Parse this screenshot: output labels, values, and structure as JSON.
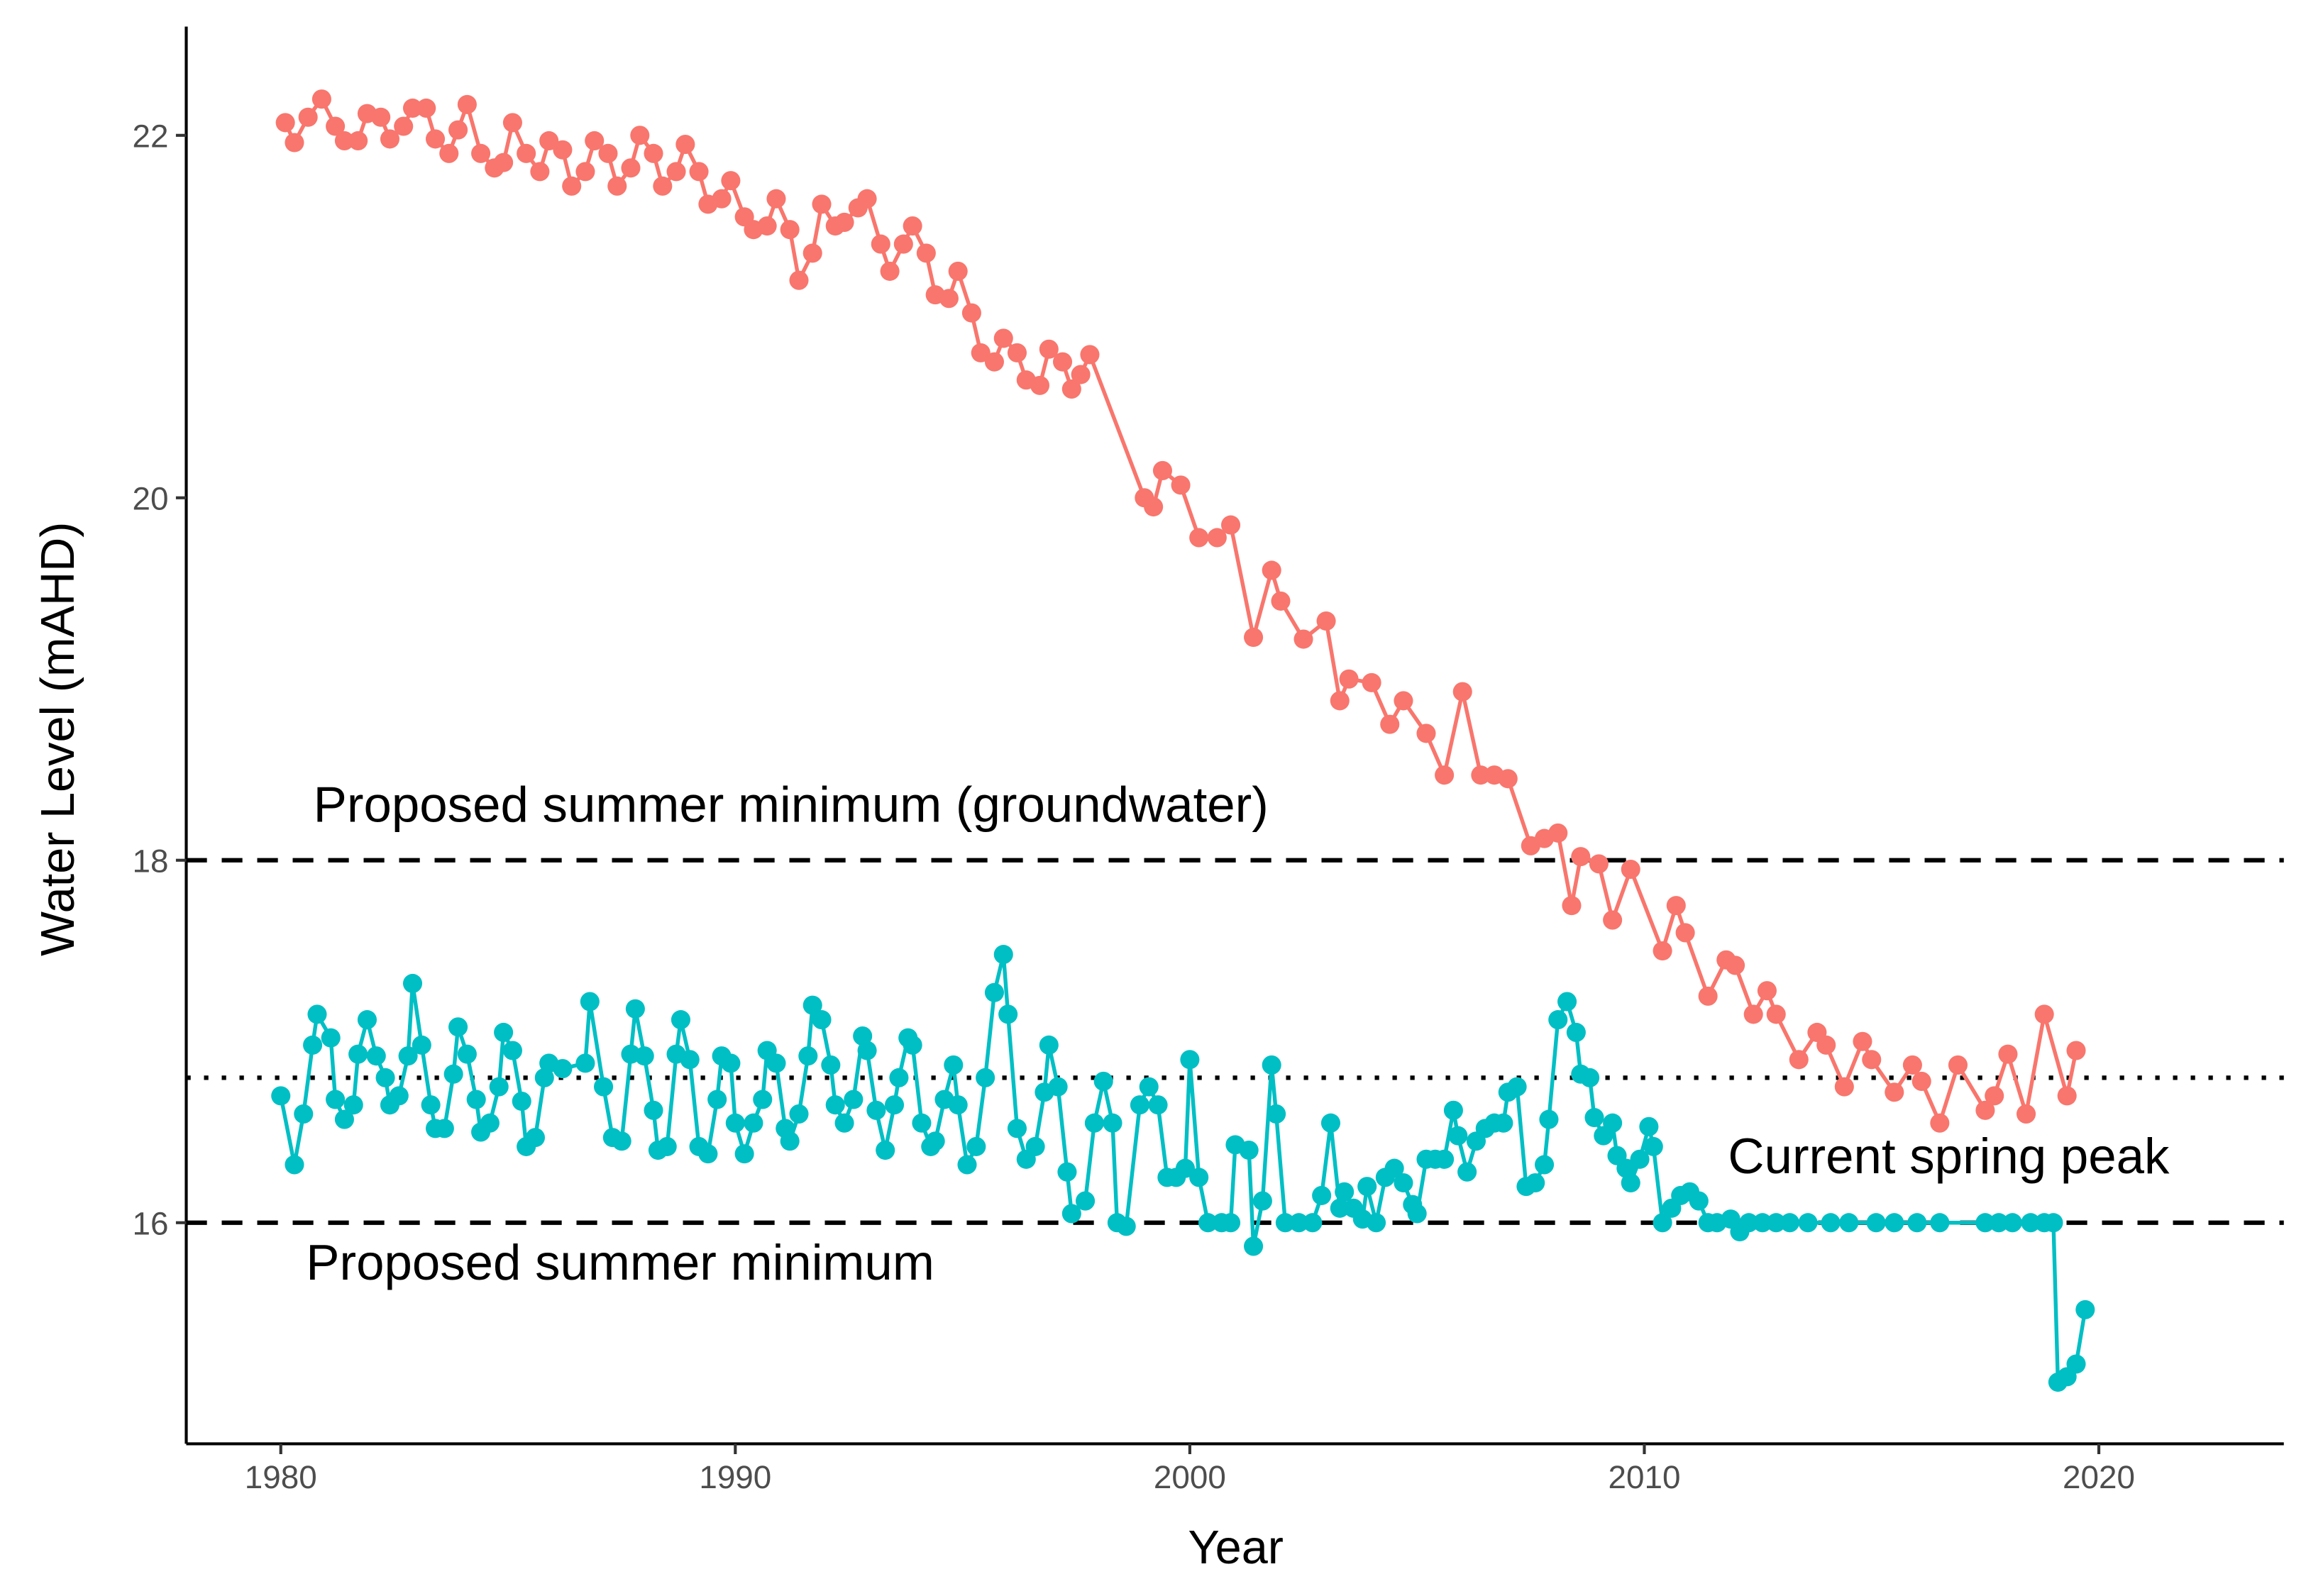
{
  "chart_data": {
    "type": "line",
    "x_label": "Year",
    "y_label": "Water Level (mAHD)",
    "xlim": [
      1977.92,
      2024.07
    ],
    "ylim": [
      14.78,
      22.6
    ],
    "xticks": [
      1980,
      1990,
      2000,
      2010,
      2020
    ],
    "yticks": [
      16,
      18,
      20,
      22
    ],
    "grid": false,
    "reference_lines": [
      {
        "value": 18,
        "style": "dashed"
      },
      {
        "value": 16,
        "style": "dashed"
      },
      {
        "value": 16.8,
        "style": "dotted"
      }
    ],
    "annotations": [
      "Proposed summer minimum (groundwater)",
      "Proposed summer minimum",
      "Current spring peak"
    ],
    "series": [
      {
        "color": "#F8766D",
        "x": [
          1980.1,
          1980.3,
          1980.6,
          1980.9,
          1981.2,
          1981.4,
          1981.7,
          1981.9,
          1982.2,
          1982.4,
          1982.7,
          1982.9,
          1983.2,
          1983.4,
          1983.7,
          1983.9,
          1984.1,
          1984.4,
          1984.7,
          1984.9,
          1985.1,
          1985.4,
          1985.7,
          1985.9,
          1986.2,
          1986.4,
          1986.7,
          1986.9,
          1987.2,
          1987.4,
          1987.7,
          1987.9,
          1988.2,
          1988.4,
          1988.7,
          1988.9,
          1989.2,
          1989.4,
          1989.7,
          1989.9,
          1990.2,
          1990.4,
          1990.7,
          1990.9,
          1991.2,
          1991.4,
          1991.7,
          1991.9,
          1992.2,
          1992.4,
          1992.7,
          1992.9,
          1993.2,
          1993.4,
          1993.7,
          1993.9,
          1994.2,
          1994.4,
          1994.7,
          1994.9,
          1995.2,
          1995.4,
          1995.7,
          1995.9,
          1996.2,
          1996.4,
          1996.7,
          1996.9,
          1997.2,
          1997.4,
          1997.6,
          1997.8,
          1999.0,
          1999.2,
          1999.4,
          1999.8,
          2000.2,
          2000.6,
          2000.9,
          2001.4,
          2001.8,
          2002.0,
          2002.5,
          2003.0,
          2003.3,
          2003.5,
          2004.0,
          2004.4,
          2004.7,
          2005.2,
          2005.6,
          2006.0,
          2006.4,
          2006.7,
          2007.0,
          2007.5,
          2007.8,
          2008.1,
          2008.4,
          2008.6,
          2009.0,
          2009.3,
          2009.7,
          2010.4,
          2010.7,
          2010.9,
          2011.4,
          2011.8,
          2012.0,
          2012.4,
          2012.7,
          2012.9,
          2013.4,
          2013.8,
          2014.0,
          2014.4,
          2014.8,
          2015.0,
          2015.5,
          2015.9,
          2016.1,
          2016.5,
          2016.9,
          2017.5,
          2017.7,
          2018.0,
          2018.4,
          2018.8,
          2019.3,
          2019.5
        ],
        "values": [
          22.07,
          21.96,
          22.1,
          22.2,
          22.05,
          21.97,
          21.97,
          22.12,
          22.1,
          21.98,
          22.05,
          22.15,
          22.15,
          21.98,
          21.9,
          22.03,
          22.17,
          21.9,
          21.82,
          21.85,
          22.07,
          21.9,
          21.8,
          21.97,
          21.92,
          21.72,
          21.8,
          21.97,
          21.9,
          21.72,
          21.82,
          22.0,
          21.9,
          21.72,
          21.8,
          21.95,
          21.8,
          21.62,
          21.65,
          21.75,
          21.55,
          21.48,
          21.5,
          21.65,
          21.48,
          21.2,
          21.35,
          21.62,
          21.5,
          21.52,
          21.6,
          21.65,
          21.4,
          21.25,
          21.4,
          21.5,
          21.35,
          21.12,
          21.1,
          21.25,
          21.02,
          20.8,
          20.75,
          20.88,
          20.8,
          20.65,
          20.62,
          20.82,
          20.75,
          20.6,
          20.68,
          20.79,
          20.0,
          19.95,
          20.15,
          20.07,
          19.78,
          19.78,
          19.85,
          19.23,
          19.6,
          19.43,
          19.22,
          19.32,
          18.88,
          19.0,
          18.98,
          18.75,
          18.88,
          18.7,
          18.47,
          18.93,
          18.47,
          18.47,
          18.45,
          18.08,
          18.12,
          18.15,
          17.75,
          18.02,
          17.98,
          17.67,
          17.95,
          17.5,
          17.75,
          17.6,
          17.25,
          17.45,
          17.42,
          17.15,
          17.28,
          17.15,
          16.9,
          17.05,
          16.98,
          16.75,
          17.0,
          16.9,
          16.72,
          16.87,
          16.78,
          16.55,
          16.87,
          16.62,
          16.7,
          16.93,
          16.6,
          17.15,
          16.7,
          16.95
        ]
      },
      {
        "color": "#00BFC4",
        "x": [
          1980.0,
          1980.3,
          1980.5,
          1980.7,
          1980.8,
          1981.1,
          1981.2,
          1981.4,
          1981.6,
          1981.7,
          1981.9,
          1982.1,
          1982.3,
          1982.4,
          1982.6,
          1982.8,
          1982.9,
          1983.1,
          1983.3,
          1983.4,
          1983.6,
          1983.8,
          1983.9,
          1984.1,
          1984.3,
          1984.4,
          1984.6,
          1984.8,
          1984.9,
          1985.1,
          1985.3,
          1985.4,
          1985.6,
          1985.8,
          1985.9,
          1986.2,
          1986.7,
          1986.8,
          1987.1,
          1987.3,
          1987.5,
          1987.7,
          1987.8,
          1988.0,
          1988.2,
          1988.3,
          1988.5,
          1988.7,
          1988.8,
          1989.0,
          1989.2,
          1989.4,
          1989.6,
          1989.7,
          1989.9,
          1990.0,
          1990.2,
          1990.4,
          1990.6,
          1990.7,
          1990.9,
          1991.1,
          1991.2,
          1991.4,
          1991.6,
          1991.7,
          1991.9,
          1992.1,
          1992.2,
          1992.4,
          1992.6,
          1992.8,
          1992.9,
          1993.1,
          1993.3,
          1993.5,
          1993.6,
          1993.8,
          1993.9,
          1994.1,
          1994.3,
          1994.4,
          1994.6,
          1994.8,
          1994.9,
          1995.1,
          1995.3,
          1995.5,
          1995.7,
          1995.9,
          1996.0,
          1996.2,
          1996.4,
          1996.6,
          1996.8,
          1996.9,
          1997.1,
          1997.3,
          1997.4,
          1997.7,
          1997.9,
          1998.1,
          1998.3,
          1998.4,
          1998.6,
          1998.9,
          1999.1,
          1999.3,
          1999.5,
          1999.7,
          1999.9,
          2000.0,
          2000.2,
          2000.4,
          2000.7,
          2000.9,
          2001.0,
          2001.3,
          2001.4,
          2001.6,
          2001.8,
          2001.9,
          2002.1,
          2002.4,
          2002.7,
          2002.9,
          2003.1,
          2003.3,
          2003.4,
          2003.6,
          2003.8,
          2003.9,
          2004.1,
          2004.3,
          2004.5,
          2004.7,
          2004.9,
          2005.0,
          2005.2,
          2005.4,
          2005.6,
          2005.8,
          2005.9,
          2006.1,
          2006.3,
          2006.5,
          2006.7,
          2006.9,
          2007.0,
          2007.2,
          2007.4,
          2007.6,
          2007.8,
          2007.9,
          2008.1,
          2008.3,
          2008.5,
          2008.6,
          2008.8,
          2008.9,
          2009.1,
          2009.3,
          2009.4,
          2009.6,
          2009.7,
          2009.9,
          2010.1,
          2010.2,
          2010.4,
          2010.6,
          2010.8,
          2011.0,
          2011.2,
          2011.4,
          2011.6,
          2011.9,
          2012.1,
          2012.3,
          2012.6,
          2012.9,
          2013.2,
          2013.6,
          2014.1,
          2014.5,
          2015.1,
          2015.5,
          2016.0,
          2016.5,
          2017.5,
          2017.8,
          2018.1,
          2018.5,
          2018.8,
          2019.0,
          2019.1,
          2019.3,
          2019.5,
          2019.7
        ],
        "values": [
          16.7,
          16.32,
          16.6,
          16.98,
          17.15,
          17.02,
          16.68,
          16.57,
          16.65,
          16.93,
          17.12,
          16.92,
          16.8,
          16.65,
          16.7,
          16.92,
          17.32,
          16.98,
          16.65,
          16.52,
          16.52,
          16.82,
          17.08,
          16.93,
          16.68,
          16.5,
          16.55,
          16.75,
          17.05,
          16.95,
          16.67,
          16.42,
          16.47,
          16.8,
          16.88,
          16.85,
          16.88,
          17.22,
          16.75,
          16.47,
          16.45,
          16.93,
          17.18,
          16.92,
          16.62,
          16.4,
          16.42,
          16.93,
          17.12,
          16.9,
          16.42,
          16.38,
          16.68,
          16.92,
          16.88,
          16.55,
          16.38,
          16.55,
          16.68,
          16.95,
          16.88,
          16.52,
          16.45,
          16.6,
          16.92,
          17.2,
          17.12,
          16.87,
          16.65,
          16.55,
          16.68,
          17.03,
          16.95,
          16.62,
          16.4,
          16.65,
          16.8,
          17.02,
          16.98,
          16.55,
          16.42,
          16.45,
          16.68,
          16.87,
          16.65,
          16.32,
          16.42,
          16.8,
          17.27,
          17.48,
          17.15,
          16.52,
          16.35,
          16.42,
          16.72,
          16.98,
          16.75,
          16.28,
          16.05,
          16.12,
          16.55,
          16.78,
          16.55,
          16.0,
          15.98,
          16.65,
          16.75,
          16.65,
          16.25,
          16.25,
          16.3,
          16.9,
          16.25,
          16.0,
          16.0,
          16.0,
          16.43,
          16.4,
          15.87,
          16.12,
          16.87,
          16.6,
          16.0,
          16.0,
          16.0,
          16.15,
          16.55,
          16.08,
          16.17,
          16.08,
          16.02,
          16.2,
          16.0,
          16.25,
          16.3,
          16.22,
          16.1,
          16.05,
          16.35,
          16.35,
          16.35,
          16.62,
          16.48,
          16.28,
          16.45,
          16.52,
          16.55,
          16.55,
          16.72,
          16.75,
          16.2,
          16.22,
          16.32,
          16.57,
          17.12,
          17.22,
          17.05,
          16.82,
          16.8,
          16.58,
          16.48,
          16.55,
          16.37,
          16.3,
          16.22,
          16.35,
          16.53,
          16.42,
          16.0,
          16.08,
          16.15,
          16.17,
          16.12,
          16.0,
          16.0,
          16.02,
          15.95,
          16.0,
          16.0,
          16.0,
          16.0,
          16.0,
          16.0,
          16.0,
          16.0,
          16.0,
          16.0,
          16.0,
          16.0,
          16.0,
          16.0,
          16.0,
          16.0,
          16.0,
          15.12,
          15.15,
          15.22,
          15.52
        ]
      }
    ]
  }
}
